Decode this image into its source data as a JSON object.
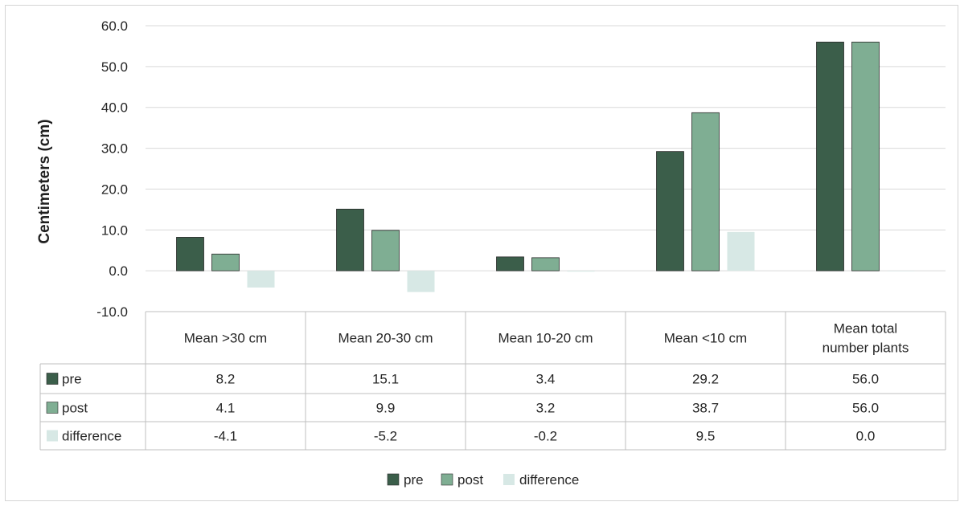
{
  "chart_data": {
    "type": "bar",
    "title": "",
    "xlabel": "",
    "ylabel": "Centimeters (cm)",
    "ylim": [
      -10,
      60
    ],
    "yticks": [
      "60.0",
      "50.0",
      "40.0",
      "30.0",
      "20.0",
      "10.0",
      "0.0",
      "-10.0"
    ],
    "grid": true,
    "legend_position": "bottom",
    "data_table": true,
    "categories": [
      [
        "Mean >30 cm"
      ],
      [
        "Mean 20-30 cm"
      ],
      [
        "Mean 10-20 cm"
      ],
      [
        "Mean <10 cm"
      ],
      [
        "Mean total",
        "number plants"
      ]
    ],
    "series": [
      {
        "name": "pre",
        "color": "#3b5e4a",
        "values": [
          8.2,
          15.1,
          3.4,
          29.2,
          56.0
        ],
        "labels": [
          "8.2",
          "15.1",
          "3.4",
          "29.2",
          "56.0"
        ]
      },
      {
        "name": "post",
        "color": "#7fae93",
        "values": [
          4.1,
          9.9,
          3.2,
          38.7,
          56.0
        ],
        "labels": [
          "4.1",
          "9.9",
          "3.2",
          "38.7",
          "56.0"
        ]
      },
      {
        "name": "difference",
        "color": "#d7e8e5",
        "values": [
          -4.1,
          -5.2,
          -0.2,
          9.5,
          0.0
        ],
        "labels": [
          "-4.1",
          "-5.2",
          "-0.2",
          "9.5",
          "0.0"
        ]
      }
    ]
  }
}
